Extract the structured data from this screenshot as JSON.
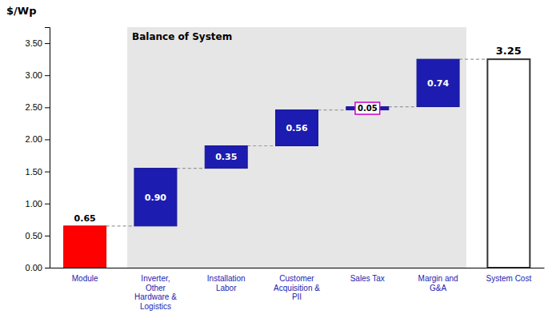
{
  "chart_data": {
    "type": "waterfall",
    "categories": [
      "Module",
      "Inverter,\nOther\nHardware &\nLogistics",
      "Installation\nLabor",
      "Customer\nAcquisition &\nPII",
      "Sales Tax",
      "Margin and\nG&A",
      "System Cost"
    ],
    "values": [
      0.65,
      0.9,
      0.35,
      0.56,
      0.05,
      0.74,
      3.25
    ],
    "value_labels": [
      "0.65",
      "0.90",
      "0.35",
      "0.56",
      "0.05",
      "0.74",
      "3.25"
    ],
    "colors": [
      "#FF0000",
      "#1C1CB0",
      "#1C1CB0",
      "#1C1CB0",
      "#1C1CB0",
      "#1C1CB0",
      "white"
    ],
    "data_labels": true,
    "ylabel": "$/Wp",
    "annotations": [
      "Balance of System"
    ],
    "ylim": [
      0,
      3.75
    ],
    "yticks": [
      {
        "value": 0.0,
        "label": "0.00"
      },
      {
        "value": 0.5,
        "label": "0.50"
      },
      {
        "value": 1.0,
        "label": "1.00"
      },
      {
        "value": 1.5,
        "label": "1.50"
      },
      {
        "value": 2.0,
        "label": "2.00"
      },
      {
        "value": 2.5,
        "label": "2.50"
      },
      {
        "value": 3.0,
        "label": "3.00"
      },
      {
        "value": 3.5,
        "label": "3.50"
      }
    ],
    "grid": false
  }
}
